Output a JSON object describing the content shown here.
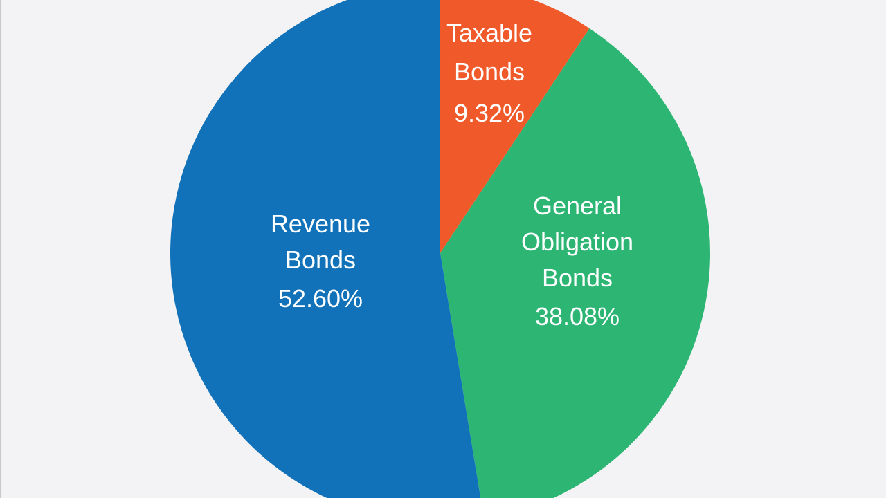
{
  "chart_data": {
    "type": "pie",
    "slices": [
      {
        "label_lines": [
          "Taxable",
          "Bonds"
        ],
        "value": 9.32,
        "value_label": "9.32%",
        "color": "#f05a2a"
      },
      {
        "label_lines": [
          "General",
          "Obligation",
          "Bonds"
        ],
        "value": 38.08,
        "value_label": "38.08%",
        "color": "#2db573"
      },
      {
        "label_lines": [
          "Revenue",
          "Bonds"
        ],
        "value": 52.6,
        "value_label": "52.60%",
        "color": "#1172b9"
      }
    ],
    "start_angle": "12 o'clock",
    "direction": "clockwise",
    "legend": "none"
  },
  "colors": {
    "background": "#f3f3f5",
    "label_text": "#ffffff"
  }
}
